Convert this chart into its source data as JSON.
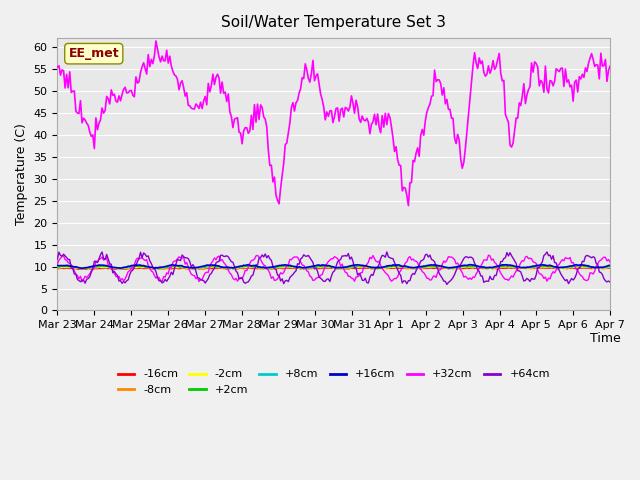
{
  "title": "Soil/Water Temperature Set 3",
  "xlabel": "Time",
  "ylabel": "Temperature (C)",
  "ylim": [
    0,
    62
  ],
  "yticks": [
    0,
    5,
    10,
    15,
    20,
    25,
    30,
    35,
    40,
    45,
    50,
    55,
    60
  ],
  "background_color": "#e8e8e8",
  "plot_bg_color": "#e8e8e8",
  "legend_entries": [
    "-16cm",
    "-8cm",
    "-2cm",
    "+2cm",
    "+8cm",
    "+16cm",
    "+32cm",
    "+64cm"
  ],
  "legend_colors": [
    "#ff0000",
    "#ff8800",
    "#ffff00",
    "#00cc00",
    "#00cccc",
    "#0000cc",
    "#ff00ff",
    "#8800cc"
  ],
  "ee_met_label": "EE_met",
  "date_start": 0,
  "num_days": 15,
  "x_tick_labels": [
    "Mar 23",
    "Mar 24",
    "Mar 25",
    "Mar 26",
    "Mar 27",
    "Mar 28",
    "Mar 29",
    "Mar 30",
    "Mar 31",
    "Apr 1",
    "Apr 2",
    "Apr 3",
    "Apr 4",
    "Apr 5",
    "Apr 6",
    "Apr 7"
  ]
}
